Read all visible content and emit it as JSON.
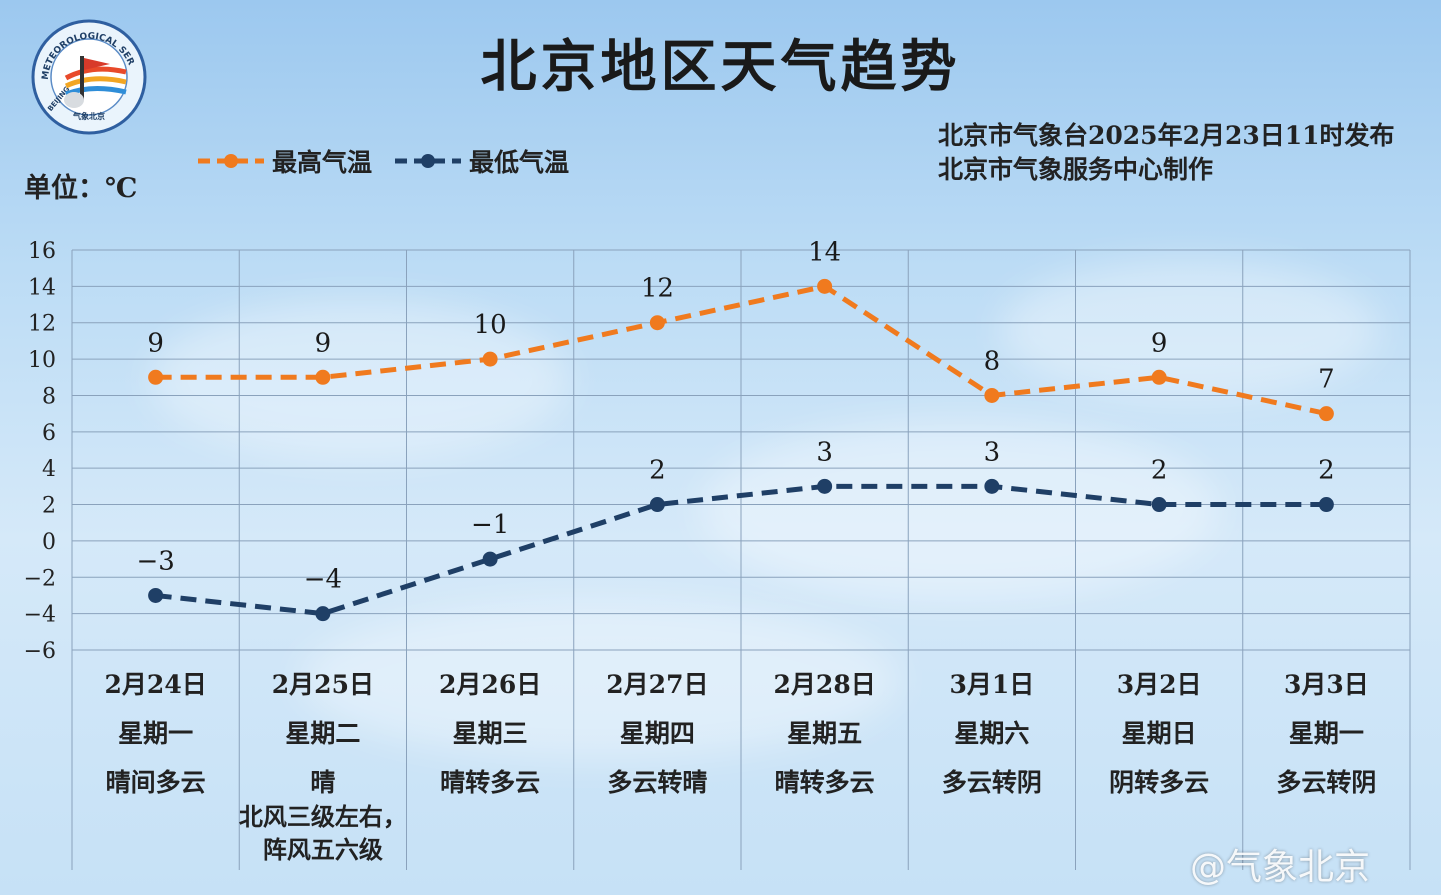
{
  "title": "北京地区天气趋势",
  "issuer_line1": "北京市气象台2025年2月23日11时发布",
  "issuer_line2": "北京市气象服务中心制作",
  "unit_label": "单位：℃",
  "logo": {
    "icon": "beijing-meteorological-service-logo",
    "text_top": "METEOROLOGICAL SERVICE",
    "text_left": "BEIJING",
    "text_bottom": "气象北京"
  },
  "watermark": "@气象北京",
  "colors": {
    "high": "#f07a1e",
    "low": "#1f3f66",
    "grid": "#8aa2bc"
  },
  "chart_data": {
    "type": "line",
    "categories": [
      {
        "date": "2月24日",
        "weekday": "星期一",
        "weather": "晴间多云",
        "note": ""
      },
      {
        "date": "2月25日",
        "weekday": "星期二",
        "weather": "晴",
        "note": "北风三级左右，\n阵风五六级"
      },
      {
        "date": "2月26日",
        "weekday": "星期三",
        "weather": "晴转多云",
        "note": ""
      },
      {
        "date": "2月27日",
        "weekday": "星期四",
        "weather": "多云转晴",
        "note": ""
      },
      {
        "date": "2月28日",
        "weekday": "星期五",
        "weather": "晴转多云",
        "note": ""
      },
      {
        "date": "3月1日",
        "weekday": "星期六",
        "weather": "多云转阴",
        "note": ""
      },
      {
        "date": "3月2日",
        "weekday": "星期日",
        "weather": "阴转多云",
        "note": ""
      },
      {
        "date": "3月3日",
        "weekday": "星期一",
        "weather": "多云转阴",
        "note": ""
      }
    ],
    "series": [
      {
        "name": "最高气温",
        "values": [
          9,
          9,
          10,
          12,
          14,
          8,
          9,
          7
        ],
        "color": "#f07a1e",
        "style": "dashed"
      },
      {
        "name": "最低气温",
        "values": [
          -3,
          -4,
          -1,
          2,
          3,
          3,
          2,
          2
        ],
        "color": "#1f3f66",
        "style": "dashed"
      }
    ],
    "ylim": [
      -6,
      16
    ],
    "yticks": [
      16,
      14,
      12,
      10,
      8,
      6,
      4,
      2,
      0,
      -2,
      -4,
      -6
    ],
    "grid": true,
    "legend_position": "top-left"
  }
}
